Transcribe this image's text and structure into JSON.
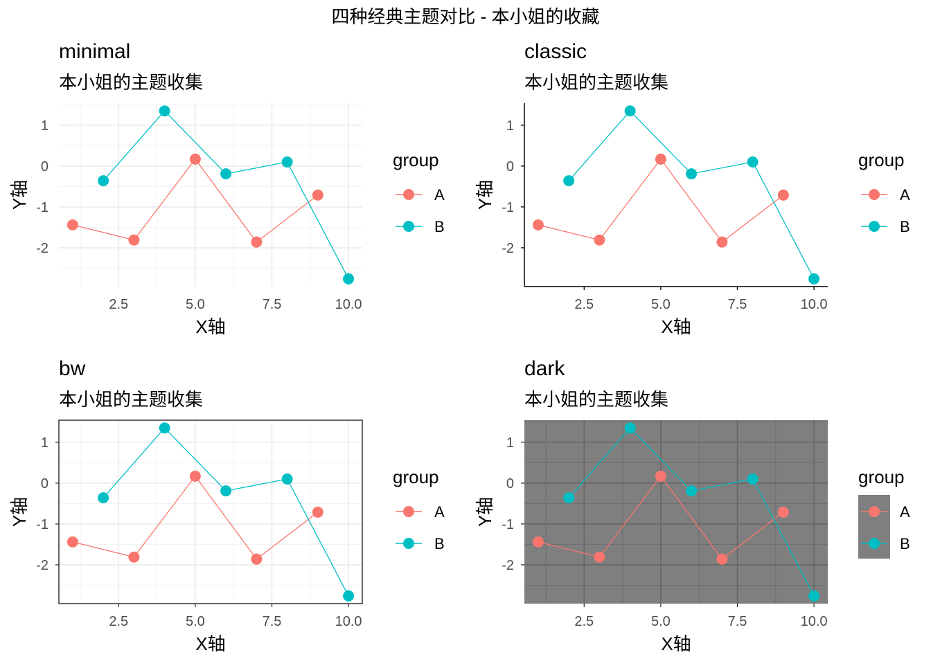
{
  "title": "四种经典主题对比 - 本小姐的收藏",
  "colors": {
    "A": "#F8766D",
    "B": "#00BFC4"
  },
  "chart_data": [
    {
      "type": "line",
      "theme": "minimal",
      "title": "minimal",
      "subtitle": "本小姐的主题收集",
      "xlabel": "X轴",
      "ylabel": "Y轴",
      "xlim": [
        0.55,
        10.45
      ],
      "ylim": [
        -2.95,
        1.54
      ],
      "xticks": [
        2.5,
        5.0,
        7.5,
        10.0
      ],
      "xtick_labels": [
        "2.5",
        "5.0",
        "7.5",
        "10.0"
      ],
      "yticks": [
        -2,
        -1,
        0,
        1
      ],
      "ytick_labels": [
        "-2",
        "-1",
        "0",
        "1"
      ],
      "legend_title": "group",
      "legend_position": "right",
      "series": [
        {
          "name": "A",
          "x": [
            1,
            3,
            5,
            7,
            9
          ],
          "y": [
            -1.44,
            -1.81,
            0.17,
            -1.86,
            -0.71
          ]
        },
        {
          "name": "B",
          "x": [
            2,
            4,
            6,
            8,
            10
          ],
          "y": [
            -0.36,
            1.35,
            -0.19,
            0.1,
            -2.76
          ]
        }
      ]
    },
    {
      "type": "line",
      "theme": "classic",
      "title": "classic",
      "subtitle": "本小姐的主题收集",
      "xlabel": "X轴",
      "ylabel": "Y轴",
      "xlim": [
        0.55,
        10.45
      ],
      "ylim": [
        -2.95,
        1.54
      ],
      "xticks": [
        2.5,
        5.0,
        7.5,
        10.0
      ],
      "xtick_labels": [
        "2.5",
        "5.0",
        "7.5",
        "10.0"
      ],
      "yticks": [
        -2,
        -1,
        0,
        1
      ],
      "ytick_labels": [
        "-2",
        "-1",
        "0",
        "1"
      ],
      "legend_title": "group",
      "legend_position": "right",
      "series": [
        {
          "name": "A",
          "x": [
            1,
            3,
            5,
            7,
            9
          ],
          "y": [
            -1.44,
            -1.81,
            0.17,
            -1.86,
            -0.71
          ]
        },
        {
          "name": "B",
          "x": [
            2,
            4,
            6,
            8,
            10
          ],
          "y": [
            -0.36,
            1.35,
            -0.19,
            0.1,
            -2.76
          ]
        }
      ]
    },
    {
      "type": "line",
      "theme": "bw",
      "title": "bw",
      "subtitle": "本小姐的主题收集",
      "xlabel": "X轴",
      "ylabel": "Y轴",
      "xlim": [
        0.55,
        10.45
      ],
      "ylim": [
        -2.95,
        1.54
      ],
      "xticks": [
        2.5,
        5.0,
        7.5,
        10.0
      ],
      "xtick_labels": [
        "2.5",
        "5.0",
        "7.5",
        "10.0"
      ],
      "yticks": [
        -2,
        -1,
        0,
        1
      ],
      "ytick_labels": [
        "-2",
        "-1",
        "0",
        "1"
      ],
      "legend_title": "group",
      "legend_position": "right",
      "series": [
        {
          "name": "A",
          "x": [
            1,
            3,
            5,
            7,
            9
          ],
          "y": [
            -1.44,
            -1.81,
            0.17,
            -1.86,
            -0.71
          ]
        },
        {
          "name": "B",
          "x": [
            2,
            4,
            6,
            8,
            10
          ],
          "y": [
            -0.36,
            1.35,
            -0.19,
            0.1,
            -2.76
          ]
        }
      ]
    },
    {
      "type": "line",
      "theme": "dark",
      "title": "dark",
      "subtitle": "本小姐的主题收集",
      "xlabel": "X轴",
      "ylabel": "Y轴",
      "xlim": [
        0.55,
        10.45
      ],
      "ylim": [
        -2.95,
        1.54
      ],
      "xticks": [
        2.5,
        5.0,
        7.5,
        10.0
      ],
      "xtick_labels": [
        "2.5",
        "5.0",
        "7.5",
        "10.0"
      ],
      "yticks": [
        -2,
        -1,
        0,
        1
      ],
      "ytick_labels": [
        "-2",
        "-1",
        "0",
        "1"
      ],
      "legend_title": "group",
      "legend_position": "right",
      "series": [
        {
          "name": "A",
          "x": [
            1,
            3,
            5,
            7,
            9
          ],
          "y": [
            -1.44,
            -1.81,
            0.17,
            -1.86,
            -0.71
          ]
        },
        {
          "name": "B",
          "x": [
            2,
            4,
            6,
            8,
            10
          ],
          "y": [
            -0.36,
            1.35,
            -0.19,
            0.1,
            -2.76
          ]
        }
      ]
    }
  ]
}
